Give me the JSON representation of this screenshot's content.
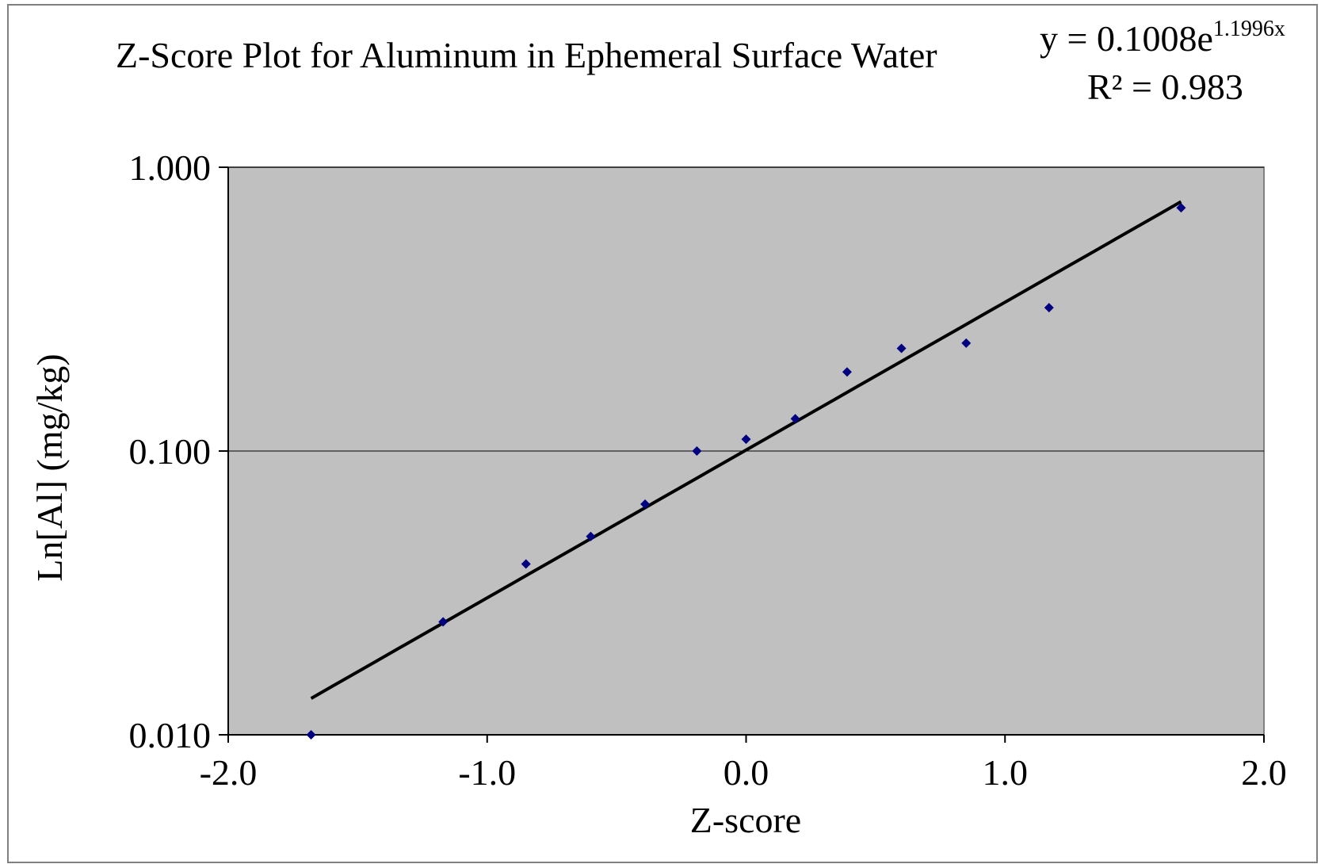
{
  "chart_data": {
    "type": "scatter",
    "title": "Z-Score Plot for Aluminum in Ephemeral Surface Water",
    "xlabel": "Z-score",
    "ylabel": "Ln[Al] (mg/kg)",
    "xlim": [
      -2.0,
      2.0
    ],
    "ylim": [
      0.01,
      1.0
    ],
    "y_scale": "log",
    "x_ticks": [
      -2.0,
      -1.0,
      0.0,
      1.0,
      2.0
    ],
    "x_tick_labels": [
      "-2.0",
      "-1.0",
      "0.0",
      "1.0",
      "2.0"
    ],
    "y_ticks": [
      0.01,
      0.1,
      1.0
    ],
    "y_tick_labels": [
      "0.010",
      "0.100",
      "1.000"
    ],
    "grid": "horizontal major gridlines",
    "legend": "none",
    "series": [
      {
        "x": [
          -1.68,
          -1.17,
          -0.85,
          -0.6,
          -0.39,
          -0.19,
          0.0,
          0.19,
          0.39,
          0.6,
          0.85,
          1.17,
          1.68
        ],
        "y": [
          0.01,
          0.025,
          0.04,
          0.05,
          0.065,
          0.1,
          0.11,
          0.13,
          0.19,
          0.23,
          0.24,
          0.32,
          0.72
        ]
      }
    ],
    "trendline": {
      "type": "exponential",
      "a": 0.1008,
      "b": 1.1996,
      "x_range": [
        -1.68,
        1.68
      ],
      "equation_main": "y = 0.1008e",
      "equation_exponent": "1.1996x",
      "r_squared_label": "R² = 0.983"
    },
    "colors": {
      "plot_area": "#c0c0c0",
      "marker": "#000080",
      "trendline": "#000000",
      "gridline": "#000000"
    }
  }
}
